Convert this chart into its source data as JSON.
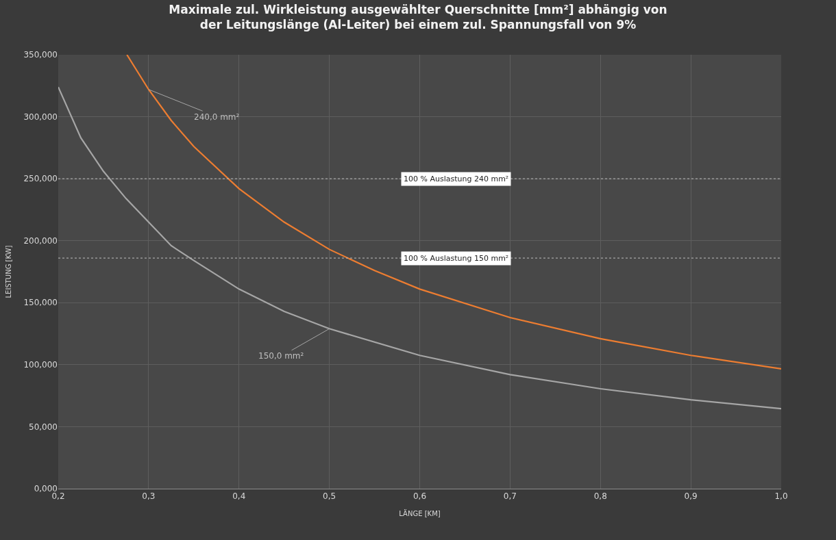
{
  "chart_data": {
    "type": "line",
    "title": "Maximale zul. Wirkleistung ausgewählter Querschnitte [mm²] abhängig von der Leitungslänge (Al-Leiter) bei einem zul. Spannungsfall von 9%",
    "xlabel": "LÄNGE [KM]",
    "ylabel": "LEISTUNG [KW]",
    "series": [
      {
        "color": "#a6a6a6",
        "x": [
          0.2,
          0.225,
          0.25,
          0.275,
          0.3,
          0.325,
          0.35,
          0.4,
          0.45,
          0.5,
          0.6,
          0.7,
          0.8,
          0.9,
          1.0
        ],
        "values": [
          324,
          283,
          256,
          234,
          215,
          196,
          184,
          161,
          143,
          129,
          107.5,
          92,
          80.6,
          71.7,
          64.5
        ]
      },
      {
        "color": "#ed7d31",
        "x": [
          0.276,
          0.3,
          0.325,
          0.35,
          0.4,
          0.45,
          0.5,
          0.55,
          0.6,
          0.7,
          0.8,
          0.9,
          1.0
        ],
        "values": [
          350,
          322,
          297,
          276,
          242,
          215,
          193,
          176,
          161,
          138,
          121,
          107.5,
          96.7
        ]
      }
    ],
    "annotations": [
      {
        "text": "240,0 mm²",
        "x": 0.3,
        "y": 322
      },
      {
        "text": "150,0 mm²",
        "x": 0.5,
        "y": 129
      }
    ],
    "ref_lines": [
      {
        "axis": "y",
        "value": 250,
        "label": "100 % Auslastung 240 mm²",
        "color": "#bfbfbf",
        "line_style": "dotted"
      },
      {
        "axis": "y",
        "value": 186,
        "label": "100 % Auslastung 150 mm²",
        "color": "#bfbfbf",
        "line_style": "dotted"
      }
    ],
    "xlim": [
      0.2,
      1.0
    ],
    "xticks": [
      {
        "value": 0.2,
        "label": "0,2"
      },
      {
        "value": 0.3,
        "label": "0,3"
      },
      {
        "value": 0.4,
        "label": "0,4"
      },
      {
        "value": 0.5,
        "label": "0,5"
      },
      {
        "value": 0.6,
        "label": "0,6"
      },
      {
        "value": 0.7,
        "label": "0,7"
      },
      {
        "value": 0.8,
        "label": "0,8"
      },
      {
        "value": 0.9,
        "label": "0,9"
      },
      {
        "value": 1.0,
        "label": "1,0"
      }
    ],
    "ylim": [
      0,
      350
    ],
    "yticks": [
      {
        "value": 0,
        "label": "0,000"
      },
      {
        "value": 50,
        "label": "50,000"
      },
      {
        "value": 100,
        "label": "100,000"
      },
      {
        "value": 150,
        "label": "150,000"
      },
      {
        "value": 200,
        "label": "200,000"
      },
      {
        "value": 250,
        "label": "250,000"
      },
      {
        "value": 300,
        "label": "300,000"
      },
      {
        "value": 350,
        "label": "350,000"
      }
    ],
    "grid": true,
    "marker": "none",
    "line_style": "solid"
  }
}
